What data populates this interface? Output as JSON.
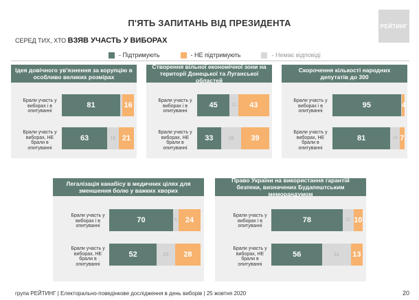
{
  "title": "П'ЯТЬ ЗАПИТАНЬ ВІД ПРЕЗИДЕНТА",
  "subtitle_prefix": "СЕРЕД ТИХ, ХТО ",
  "subtitle_bold": "ВЗЯВ УЧАСТЬ У ВИБОРАХ",
  "logo_text": "РЕЙТИНГ",
  "legend": {
    "support": "- Підтримують",
    "not_support": "- НЕ підтримують",
    "no_answer": "- Немає відповіді"
  },
  "colors": {
    "support": "#5e7c73",
    "not_support": "#f7b26e",
    "no_answer": "#d8d8d8",
    "header": "#5e7c73"
  },
  "row_labels": {
    "voted_and_polled": "Брали участь у виборах і в опитуванні",
    "voted_not_polled": "Брали участь у виборах, НЕ брали в опитуванні"
  },
  "chart_data": [
    {
      "type": "bar",
      "title": "Ідея довічного ув'язнення за корупцію в особливо великих розмірах",
      "categories": [
        "Брали участь у виборах і в опитуванні",
        "Брали участь у виборах, НЕ брали в опитуванні"
      ],
      "series": [
        {
          "name": "Підтримують",
          "values": [
            81,
            63
          ]
        },
        {
          "name": "Немає відповіді",
          "values": [
            3,
            16
          ]
        },
        {
          "name": "НЕ підтримують",
          "values": [
            16,
            21
          ]
        }
      ],
      "labels": [
        [
          "81",
          "",
          "16"
        ],
        [
          "63",
          "16",
          "21"
        ]
      ]
    },
    {
      "type": "bar",
      "title": "Створення вільної економічної зони на території Донецької та Луганської областей",
      "categories": [
        "Брали участь у виборах і в опитуванні",
        "Брали участь у виборах, НЕ брали в опитуванні"
      ],
      "series": [
        {
          "name": "Підтримують",
          "values": [
            45,
            33
          ]
        },
        {
          "name": "Немає відповіді",
          "values": [
            12,
            28
          ]
        },
        {
          "name": "НЕ підтримують",
          "values": [
            43,
            39
          ]
        }
      ],
      "labels": [
        [
          "45",
          "12",
          "43"
        ],
        [
          "33",
          "28",
          "39"
        ]
      ]
    },
    {
      "type": "bar",
      "title": "Скорочення кількості народних депутатів до 300",
      "categories": [
        "Брали участь у виборах і в опитуванні",
        "Брали участь у виборах, НЕ брали в опитуванні"
      ],
      "series": [
        {
          "name": "Підтримують",
          "values": [
            95,
            81
          ]
        },
        {
          "name": "Немає відповіді",
          "values": [
            1,
            13
          ]
        },
        {
          "name": "НЕ підтримують",
          "values": [
            4,
            7
          ]
        }
      ],
      "labels": [
        [
          "95",
          "",
          "4"
        ],
        [
          "81",
          "13",
          "7"
        ]
      ]
    },
    {
      "type": "bar",
      "title": "Легалізація канабісу в медичних цілях для зменшення болю у важких хворих",
      "categories": [
        "Брали участь у виборах і в опитуванні",
        "Брали участь у виборах, НЕ брали в опитуванні"
      ],
      "series": [
        {
          "name": "Підтримують",
          "values": [
            70,
            52
          ]
        },
        {
          "name": "Немає відповіді",
          "values": [
            6,
            20
          ]
        },
        {
          "name": "НЕ підтримують",
          "values": [
            24,
            28
          ]
        }
      ],
      "labels": [
        [
          "70",
          "6",
          "24"
        ],
        [
          "52",
          "20",
          "28"
        ]
      ]
    },
    {
      "type": "bar",
      "title": "Право України на використання гарантій безпеки, визначених Будапештським меморандумом",
      "categories": [
        "Брали участь у виборах і в опитуванні",
        "Брали участь у виборах, НЕ брали в опитуванні"
      ],
      "series": [
        {
          "name": "Підтримують",
          "values": [
            78,
            56
          ]
        },
        {
          "name": "Немає відповіді",
          "values": [
            12,
            31
          ]
        },
        {
          "name": "НЕ підтримують",
          "values": [
            10,
            13
          ]
        }
      ],
      "labels": [
        [
          "78",
          "12",
          "10"
        ],
        [
          "56",
          "31",
          "13"
        ]
      ]
    }
  ],
  "footer": "група РЕЙТИНГ | Електорально-поведінкове дослідження в день виборів | 25 жовтня 2020",
  "page_number": "20"
}
